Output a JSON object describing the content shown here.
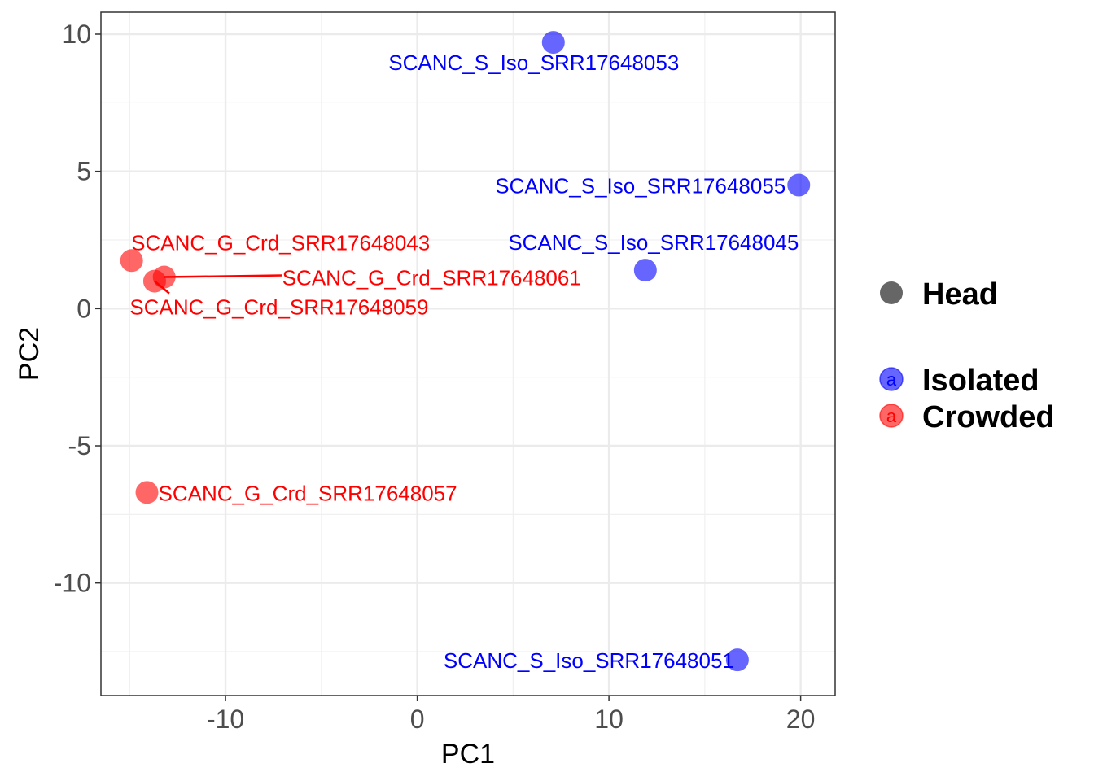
{
  "chart_data": {
    "type": "scatter",
    "xlabel": "PC1",
    "ylabel": "PC2",
    "xlim": [
      -16.5,
      21.8
    ],
    "ylim": [
      -14.1,
      10.8
    ],
    "xticks": [
      -10,
      0,
      10,
      20
    ],
    "yticks": [
      -10,
      -5,
      0,
      5,
      10
    ],
    "xtick_labels": [
      "-10",
      "0",
      "10",
      "20"
    ],
    "ytick_labels": [
      "-10",
      "-5",
      "0",
      "5",
      "10"
    ],
    "grid": true,
    "legend_position": "right",
    "series": [
      {
        "name": "Isolated",
        "color": "#0000ff",
        "points": [
          {
            "x": 7.1,
            "y": 9.7,
            "label": "SCANC_S_Iso_SRR17648053"
          },
          {
            "x": 19.9,
            "y": 4.5,
            "label": "SCANC_S_Iso_SRR17648055"
          },
          {
            "x": 11.9,
            "y": 1.4,
            "label": "SCANC_S_Iso_SRR17648045"
          },
          {
            "x": 16.7,
            "y": -12.8,
            "label": "SCANC_S_Iso_SRR17648051"
          }
        ]
      },
      {
        "name": "Crowded",
        "color": "#ff0000",
        "points": [
          {
            "x": -14.9,
            "y": 1.75,
            "label": "SCANC_G_Crd_SRR17648043"
          },
          {
            "x": -13.2,
            "y": 1.15,
            "label": "SCANC_G_Crd_SRR17648061"
          },
          {
            "x": -13.7,
            "y": 1.0,
            "label": "SCANC_G_Crd_SRR17648059"
          },
          {
            "x": -14.1,
            "y": -6.7,
            "label": "SCANC_G_Crd_SRR17648057"
          }
        ]
      }
    ],
    "legend": {
      "shape_title": "Head",
      "entries": [
        {
          "label": "Isolated",
          "color": "#0000ff",
          "key_glyph": "a"
        },
        {
          "label": "Crowded",
          "color": "#ff0000",
          "key_glyph": "a"
        }
      ]
    }
  }
}
